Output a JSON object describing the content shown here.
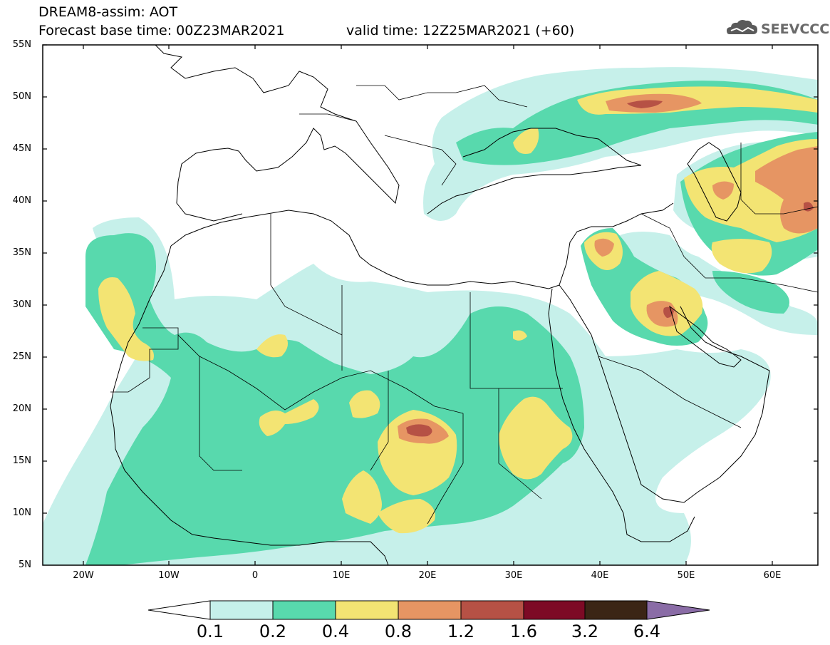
{
  "header": {
    "title_line1": "DREAM8-assim: AOT",
    "title_line2": "Forecast base time: 00Z23MAR2021",
    "valid_time": "valid time: 12Z25MAR2021 (+60)",
    "logo_text": "SEEVCCC"
  },
  "map": {
    "extent": {
      "lon_min": -25,
      "lon_max": 65,
      "lat_min": 5,
      "lat_max": 55
    },
    "lat_labels": [
      "55N",
      "50N",
      "45N",
      "40N",
      "35N",
      "30N",
      "25N",
      "20N",
      "15N",
      "10N",
      "5N"
    ],
    "lon_labels": [
      "20W",
      "10W",
      "0",
      "10E",
      "20E",
      "30E",
      "40E",
      "50E",
      "60E"
    ]
  },
  "colorbar": {
    "levels": [
      "0.1",
      "0.2",
      "0.4",
      "0.8",
      "1.2",
      "1.6",
      "3.2",
      "6.4"
    ],
    "colors": [
      "#c6f0ea",
      "#58d9ad",
      "#f3e473",
      "#e69563",
      "#b65145",
      "#7d0a25",
      "#3b2515",
      "#8a6ca6"
    ]
  }
}
